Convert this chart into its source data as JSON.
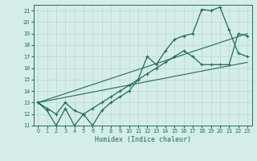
{
  "xlabel": "Humidex (Indice chaleur)",
  "xlim": [
    -0.5,
    23.5
  ],
  "ylim": [
    11,
    21.5
  ],
  "yticks": [
    11,
    12,
    13,
    14,
    15,
    16,
    17,
    18,
    19,
    20,
    21
  ],
  "xticks": [
    0,
    1,
    2,
    3,
    4,
    5,
    6,
    7,
    8,
    9,
    10,
    11,
    12,
    13,
    14,
    15,
    16,
    17,
    18,
    19,
    20,
    21,
    22,
    23
  ],
  "bg_color": "#d5ede8",
  "line_color": "#1e6b5e",
  "grid_color": "#b8d8d2",
  "line1_x": [
    0,
    1,
    2,
    3,
    4,
    5,
    6,
    7,
    8,
    9,
    10,
    11,
    12,
    13,
    14,
    15,
    16,
    17,
    18,
    19,
    20,
    21,
    22,
    23
  ],
  "line1_y": [
    13.0,
    12.3,
    11.0,
    12.5,
    11.0,
    12.0,
    11.0,
    12.3,
    13.0,
    13.5,
    14.0,
    15.0,
    17.0,
    16.3,
    17.5,
    18.5,
    18.8,
    19.0,
    21.1,
    21.0,
    21.3,
    19.3,
    17.3,
    17.0
  ],
  "line2_x": [
    0,
    1,
    2,
    3,
    4,
    5,
    6,
    7,
    8,
    9,
    10,
    11,
    12,
    13,
    14,
    15,
    16,
    17,
    18,
    19,
    20,
    21,
    22,
    23
  ],
  "line2_y": [
    13.0,
    12.5,
    12.0,
    13.0,
    12.3,
    12.0,
    12.5,
    13.0,
    13.5,
    14.0,
    14.5,
    15.0,
    15.5,
    16.0,
    16.5,
    17.0,
    17.5,
    17.0,
    16.3,
    16.3,
    16.3,
    16.3,
    19.0,
    18.8
  ],
  "line3_x": [
    0,
    23
  ],
  "line3_y": [
    13.0,
    19.0
  ],
  "line4_x": [
    0,
    23
  ],
  "line4_y": [
    13.0,
    16.5
  ]
}
